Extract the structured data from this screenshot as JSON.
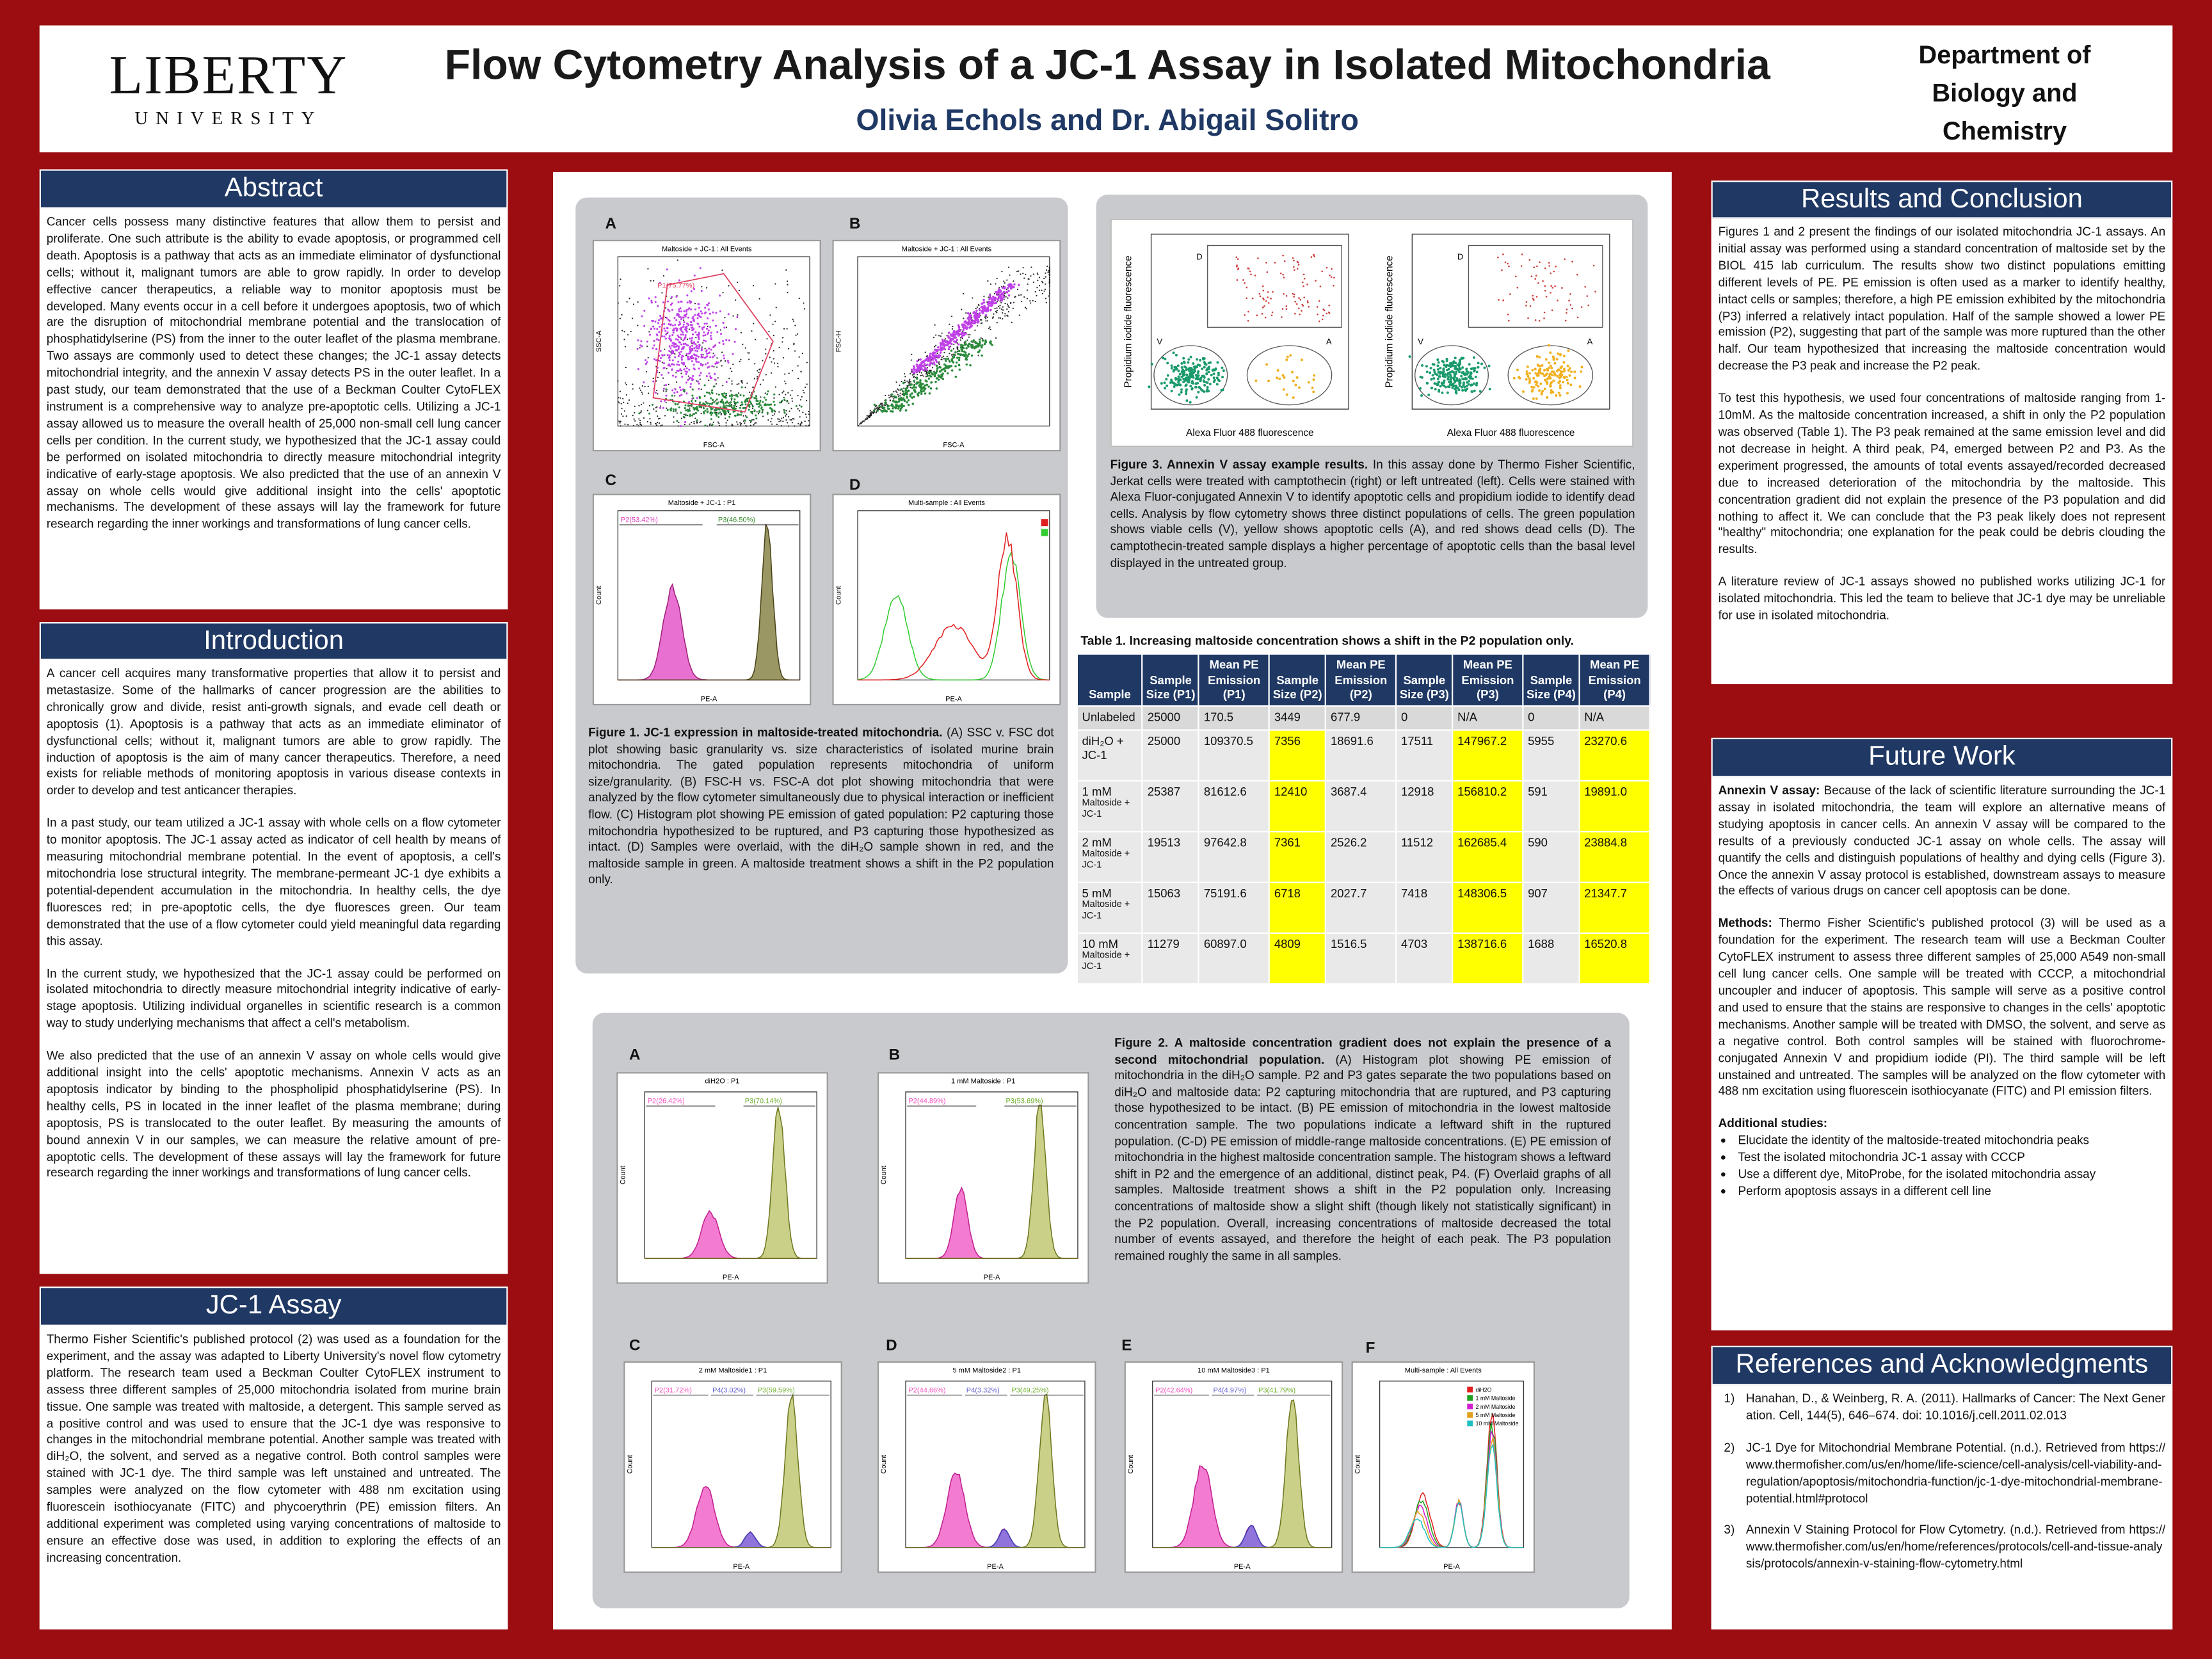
{
  "header": {
    "logo_line1": "LIBERTY",
    "logo_line2": "UNIVERSITY",
    "title": "Flow Cytometry Analysis of a JC-1 Assay in Isolated Mitochondria",
    "authors": "Olivia Echols and Dr. Abigail Solitro",
    "department": "Department of Biology and Chemistry"
  },
  "abstract": {
    "heading": "Abstract",
    "paragraphs": [
      "Cancer cells possess many distinctive features that allow them to persist and proliferate. One such attribute is the ability to evade apoptosis, or programmed cell death. Apoptosis is a pathway that acts as an immediate eliminator of dysfunctional cells; without it, malignant tumors are able to grow rapidly. In order to develop effective cancer therapeutics, a reliable way to monitor apoptosis must be developed. Many events occur in a cell before it undergoes apoptosis, two of which are the disruption of mitochondrial membrane potential and the translocation of phosphatidylserine (PS) from the inner to the outer leaflet of the plasma membrane. Two assays are commonly used to detect these changes; the JC-1 assay detects mitochondrial integrity, and the annexin V assay detects PS in the outer leaflet. In a past study, our team demonstrated that the use of a Beckman Coulter CytoFLEX instrument is a comprehensive way to analyze pre-apoptotic cells. Utilizing a JC-1 assay allowed us to measure the overall health of 25,000 non-small cell lung cancer cells per condition. In the current study, we hypothesized that the JC-1 assay could be performed on isolated mitochondria to directly measure mitochondrial integrity indicative of early-stage apoptosis. We also predicted that the use of an annexin V assay on whole cells would give additional insight into the cells' apoptotic mechanisms. The development of these assays will lay the framework for future research regarding the inner workings and transformations of lung cancer cells."
    ]
  },
  "introduction": {
    "heading": "Introduction",
    "paragraphs": [
      "A cancer cell acquires many transformative properties that allow it to persist and metastasize. Some of the hallmarks of cancer progression are the abilities to chronically grow and divide, resist anti-growth signals, and evade cell death or apoptosis (1). Apoptosis is a pathway that acts as an immediate eliminator of dysfunctional cells; without it, malignant tumors are able to grow rapidly. The induction of apoptosis is the aim of many cancer therapeutics. Therefore, a need exists for reliable methods of monitoring apoptosis in various disease contexts in order to develop and test anticancer therapies.",
      "In a past study, our team utilized a JC-1 assay with whole cells on a flow cytometer to monitor apoptosis. The JC-1 assay acted as indicator of cell health by means of measuring mitochondrial membrane potential. In the event of apoptosis, a cell's mitochondria lose structural integrity. The membrane-permeant JC-1 dye exhibits a potential-dependent accumulation in the mitochondria. In healthy cells, the dye fluoresces red; in pre-apoptotic cells, the dye fluoresces green. Our team demonstrated that the use of a flow cytometer could yield meaningful data regarding this assay.",
      "In the current study, we hypothesized that the JC-1 assay could be performed on isolated mitochondria to directly measure mitochondrial integrity indicative of early-stage apoptosis. Utilizing individual organelles in scientific research is a common way to study underlying mechanisms that affect a cell's metabolism.",
      "We also predicted that the use of an annexin V assay on whole cells would give additional insight into the cells' apoptotic mechanisms. Annexin V acts as an apoptosis indicator by binding to the phospholipid phosphatidylserine (PS). In healthy cells, PS in located in the inner leaflet of the plasma membrane; during apoptosis, PS is translocated to the outer leaflet. By measuring the amounts of bound annexin V in our samples, we can measure the relative amount of pre-apoptotic cells. The development of these assays will lay the framework for future research regarding the inner workings and transformations of lung cancer cells."
    ]
  },
  "jc1_assay": {
    "heading": "JC-1 Assay",
    "paragraphs": [
      "Thermo Fisher Scientific's published protocol (2) was used as a foundation for the experiment, and the assay was adapted to Liberty University's novel flow cytometry platform. The research team used a Beckman Coulter CytoFLEX instrument to assess three different samples of 25,000 mitochondria isolated from murine brain tissue. One sample was treated with maltoside, a detergent. This sample served as a positive control and was used to ensure that the JC-1 dye was responsive to changes in the mitochondrial membrane potential. Another sample was treated with diH₂O, the solvent, and served as a negative control. Both control samples were stained with JC-1 dye. The third sample was left unstained and untreated. The samples were analyzed on the flow cytometer with 488 nm excitation using fluorescein isothiocyanate (FITC) and phycoerythrin (PE) emission filters. An additional experiment was completed using varying concentrations of maltoside to ensure an effective dose was used, in addition to exploring the effects of an increasing concentration."
    ]
  },
  "figure1": {
    "panels": [
      {
        "letter": "A",
        "title": "Maltoside + JC-1 : All Events",
        "x_label": "FSC-A",
        "y_label": "SSC-A",
        "gates": [
          "P1(75.77%)"
        ]
      },
      {
        "letter": "B",
        "title": "Maltoside + JC-1 : All Events",
        "x_label": "FSC-A",
        "y_label": "FSC-H",
        "gates": []
      },
      {
        "letter": "C",
        "title": "Maltoside + JC-1 : P1",
        "x_label": "PE-A",
        "y_label": "Count",
        "gates": [
          "P2(53.42%)",
          "P3(46.50%)"
        ]
      },
      {
        "letter": "D",
        "title": "Multi-sample : All Events",
        "x_label": "PE-A",
        "y_label": "Count",
        "gates": []
      }
    ],
    "caption_label": "Figure 1.  JC-1 expression in maltoside-treated mitochondria.",
    "caption": "(A) SSC v. FSC dot plot showing basic granularity vs. size characteristics of isolated murine brain mitochondria. The gated population represents mitochondria of uniform size/granularity. (B) FSC-H vs. FSC-A dot plot showing mitochondria that were analyzed by the flow cytometer simultaneously due to physical interaction or inefficient flow. (C) Histogram plot showing PE emission of gated population: P2 capturing those mitochondria hypothesized to be ruptured, and P3 capturing those hypothesized as intact. (D) Samples were overlaid, with the diH₂O sample shown in red, and the maltoside sample in green. A maltoside treatment shows a shift in the P2 population only."
  },
  "figure3": {
    "panels": [
      {
        "x_label": "Alexa Fluor 488 fluorescence",
        "y_label": "Propidium iodide fluorescence",
        "regions": [
          "D",
          "V",
          "A"
        ]
      },
      {
        "x_label": "Alexa Fluor 488 fluorescence",
        "y_label": "Propidium iodide fluorescence",
        "regions": [
          "D",
          "V",
          "A"
        ]
      }
    ],
    "caption_label": "Figure 3. Annexin V assay example results.",
    "caption": "In this assay done by Thermo Fisher Scientific, Jerkat cells were treated with camptothecin (right) or left untreated (left). Cells were stained with Alexa Fluor-conjugated Annexin V to identify apoptotic cells and propidium iodide to identify dead cells. Analysis by flow cytometry shows three distinct populations of cells. The green population shows viable cells (V), yellow shows apoptotic cells (A), and red shows dead cells (D). The camptothecin-treated sample displays a higher percentage of apoptotic cells than the basal level displayed in the untreated group."
  },
  "table1": {
    "title": "Table 1. Increasing maltoside concentration shows a shift in the P2 population only.",
    "columns": [
      "Sample",
      "Sample Size (P1)",
      "Mean PE Emission (P1)",
      "Sample Size (P2)",
      "Mean PE Emission (P2)",
      "Sample Size (P3)",
      "Mean PE Emission (P3)",
      "Sample Size (P4)",
      "Mean PE Emission (P4)"
    ],
    "samples": [
      {
        "label": "Unlabeled"
      },
      {
        "label": "diH₂O + JC-1"
      },
      {
        "label": "1 mM",
        "note": "Maltoside + JC-1"
      },
      {
        "label": "2 mM",
        "note": "Maltoside + JC-1"
      },
      {
        "label": "5 mM",
        "note": "Maltoside + JC-1"
      },
      {
        "label": "10 mM",
        "note": "Maltoside + JC-1"
      }
    ],
    "rows": [
      [
        "25000",
        "170.5",
        "3449",
        "677.9",
        "0",
        "N/A",
        "0",
        "N/A"
      ],
      [
        "25000",
        "109370.5",
        "7356",
        "18691.6",
        "17511",
        "147967.2",
        "5955",
        "23270.6"
      ],
      [
        "25387",
        "81612.6",
        "12410",
        "3687.4",
        "12918",
        "156810.2",
        "591",
        "19891.0"
      ],
      [
        "19513",
        "97642.8",
        "7361",
        "2526.2",
        "11512",
        "162685.4",
        "590",
        "23884.8"
      ],
      [
        "15063",
        "75191.6",
        "6718",
        "2027.7",
        "7418",
        "148306.5",
        "907",
        "21347.7"
      ],
      [
        "11279",
        "60897.0",
        "4809",
        "1516.5",
        "4703",
        "138716.6",
        "1688",
        "16520.8"
      ]
    ]
  },
  "figure2": {
    "panels": [
      {
        "letter": "A",
        "title": "diH2O : P1",
        "x_label": "PE-A",
        "y_label": "Count",
        "gates": [
          "P2(26.42%)",
          "P3(70.14%)"
        ]
      },
      {
        "letter": "B",
        "title": "1 mM Maltoside : P1",
        "x_label": "PE-A",
        "y_label": "Count",
        "gates": [
          "P2(44.89%)",
          "P3(53.69%)"
        ]
      },
      {
        "letter": "C",
        "title": "2 mM Maltoside1 : P1",
        "x_label": "PE-A",
        "y_label": "Count",
        "gates": [
          "P2(31.72%)",
          "P4(3.02%)",
          "P3(59.59%)"
        ]
      },
      {
        "letter": "D",
        "title": "5 mM Maltoside2 : P1",
        "x_label": "PE-A",
        "y_label": "Count",
        "gates": [
          "P2(44.66%)",
          "P4(3.32%)",
          "P3(49.25%)"
        ]
      },
      {
        "letter": "E",
        "title": "10 mM Maltoside3 : P1",
        "x_label": "PE-A",
        "y_label": "Count",
        "gates": [
          "P2(42.64%)",
          "P4(4.97%)",
          "P3(41.79%)"
        ]
      },
      {
        "letter": "F",
        "title": "Multi-sample : All Events",
        "x_label": "PE-A",
        "y_label": "Count",
        "gates": [],
        "legend": [
          "diH2O",
          "1 mM Maltoside",
          "2 mM Maltoside",
          "5 mM Maltoside",
          "10 mM Maltoside"
        ]
      }
    ],
    "caption_label": "Figure 2. A maltoside concentration gradient does not explain the presence of a second mitochondrial population.",
    "caption": "(A) Histogram plot showing PE emission of mitochondria in the diH₂O sample. P2 and P3 gates separate the two populations based on diH₂O and maltoside data: P2 capturing mitochondria that are ruptured, and P3 capturing those hypothesized to be intact. (B) PE emission of mitochondria in the lowest maltoside concentration sample. The two populations indicate a leftward shift in the ruptured population. (C-D) PE emission of middle-range maltoside concentrations. (E) PE emission of mitochondria in the highest maltoside concentration sample. The histogram shows a leftward shift in P2 and the emergence of an additional, distinct peak, P4. (F) Overlaid graphs of all samples. Maltoside treatment shows a shift in the P2 population only. Increasing concentrations of maltoside show a slight shift (though likely not statistically significant) in the P2 population. Overall, increasing concentrations of maltoside decreased the total number of events assayed, and therefore the height of each peak. The P3 population remained roughly the same in all samples."
  },
  "results": {
    "heading": "Results and Conclusion",
    "paragraphs": [
      "Figures 1 and 2 present the findings of our isolated mitochondria JC-1 assays. An initial assay was performed using a standard concentration of maltoside set by the BIOL 415 lab curriculum. The results show two distinct populations emitting different levels of PE. PE emission is often used as a marker to identify healthy, intact cells or samples; therefore, a high PE emission exhibited by the mitochondria (P3) inferred a relatively intact population. Half of the sample showed a lower PE emission (P2), suggesting that part of the sample was more ruptured than the other half. Our team hypothesized that increasing the maltoside concentration would decrease the P3 peak and increase the P2 peak.",
      "To test this hypothesis, we used four concentrations of maltoside ranging from 1-10mM. As the maltoside concentration increased, a shift in only the P2 population was observed (Table 1). The P3 peak remained at the same emission level and did not decrease in height. A third peak, P4, emerged between P2 and P3. As the experiment progressed, the amounts of total events assayed/recorded decreased due to increased deterioration of the mitochondria by the maltoside. This concentration gradient did not explain the presence of the P3 population and did nothing to affect it. We can conclude that the P3 peak likely does not represent \"healthy\" mitochondria; one explanation for the peak could be debris clouding the results.",
      "A literature review of JC-1 assays showed no published works utilizing JC-1 for isolated mitochondria. This led the team to believe that JC-1 dye may be unreliable for use in isolated mitochondria."
    ]
  },
  "future_work": {
    "heading": "Future Work",
    "paragraphs": [
      {
        "label": "Annexin V assay:",
        "text": "Because of the lack of scientific literature surrounding the JC-1 assay in isolated mitochondria, the team will explore an alternative means of studying apoptosis in cancer cells. An annexin V assay will be compared to the results of a previously conducted JC-1 assay on whole cells. The assay will quantify the cells and distinguish populations of healthy and dying cells (Figure 3). Once the annexin V assay protocol is established, downstream assays to measure the effects of various drugs on cancer cell apoptosis can be done."
      },
      {
        "label": "Methods:",
        "text": "Thermo Fisher Scientific's published protocol (3) will be used as a foundation for the experiment. The research team will use a Beckman Coulter CytoFLEX instrument to assess three different samples of 25,000 A549 non-small cell lung cancer cells. One sample will be treated with CCCP, a mitochondrial uncoupler and inducer of apoptosis. This sample will serve as a positive control and used to ensure that the stains are responsive to changes in the cells' apoptotic mechanisms. Another sample will be treated with DMSO, the solvent, and serve as a negative control. Both control samples will be stained with fluorochrome-conjugated Annexin V and propidium iodide (PI). The third sample will be left unstained and untreated. The samples will be analyzed on the flow cytometer with 488 nm excitation using fluorescein isothiocyanate (FITC) and PI emission filters."
      }
    ],
    "additional_label": "Additional studies:",
    "list": [
      "Elucidate the identity of the maltoside-treated mitochondria peaks",
      "Test the isolated mitochondria JC-1 assay with CCCP",
      "Use a different dye, MitoProbe, for the isolated mitochondria assay",
      "Perform apoptosis assays in a different cell line"
    ]
  },
  "references": {
    "heading": "References and Acknowledgments",
    "items": [
      {
        "number": "1)",
        "text": "Hanahan, D., & Weinberg, R. A. (2011). Hallmarks of Cancer: The Next Generation. Cell, 144(5), 646–674. doi: 10.1016/j.cell.2011.02.013"
      },
      {
        "number": "2)",
        "text": "JC-1 Dye for Mitochondrial Membrane Potential. (n.d.). Retrieved from https://www.thermofisher.com/us/en/home/life-science/cell-analysis/cell-viability-and-regulation/apoptosis/mitochondria-function/jc-1-dye-mitochondrial-membrane-potential.html#protocol"
      },
      {
        "number": "3)",
        "text": "Annexin V Staining Protocol for Flow Cytometry. (n.d.). Retrieved from https://www.thermofisher.com/us/en/home/references/protocols/cell-and-tissue-analysis/protocols/annexin-v-staining-flow-cytometry.html"
      }
    ]
  }
}
